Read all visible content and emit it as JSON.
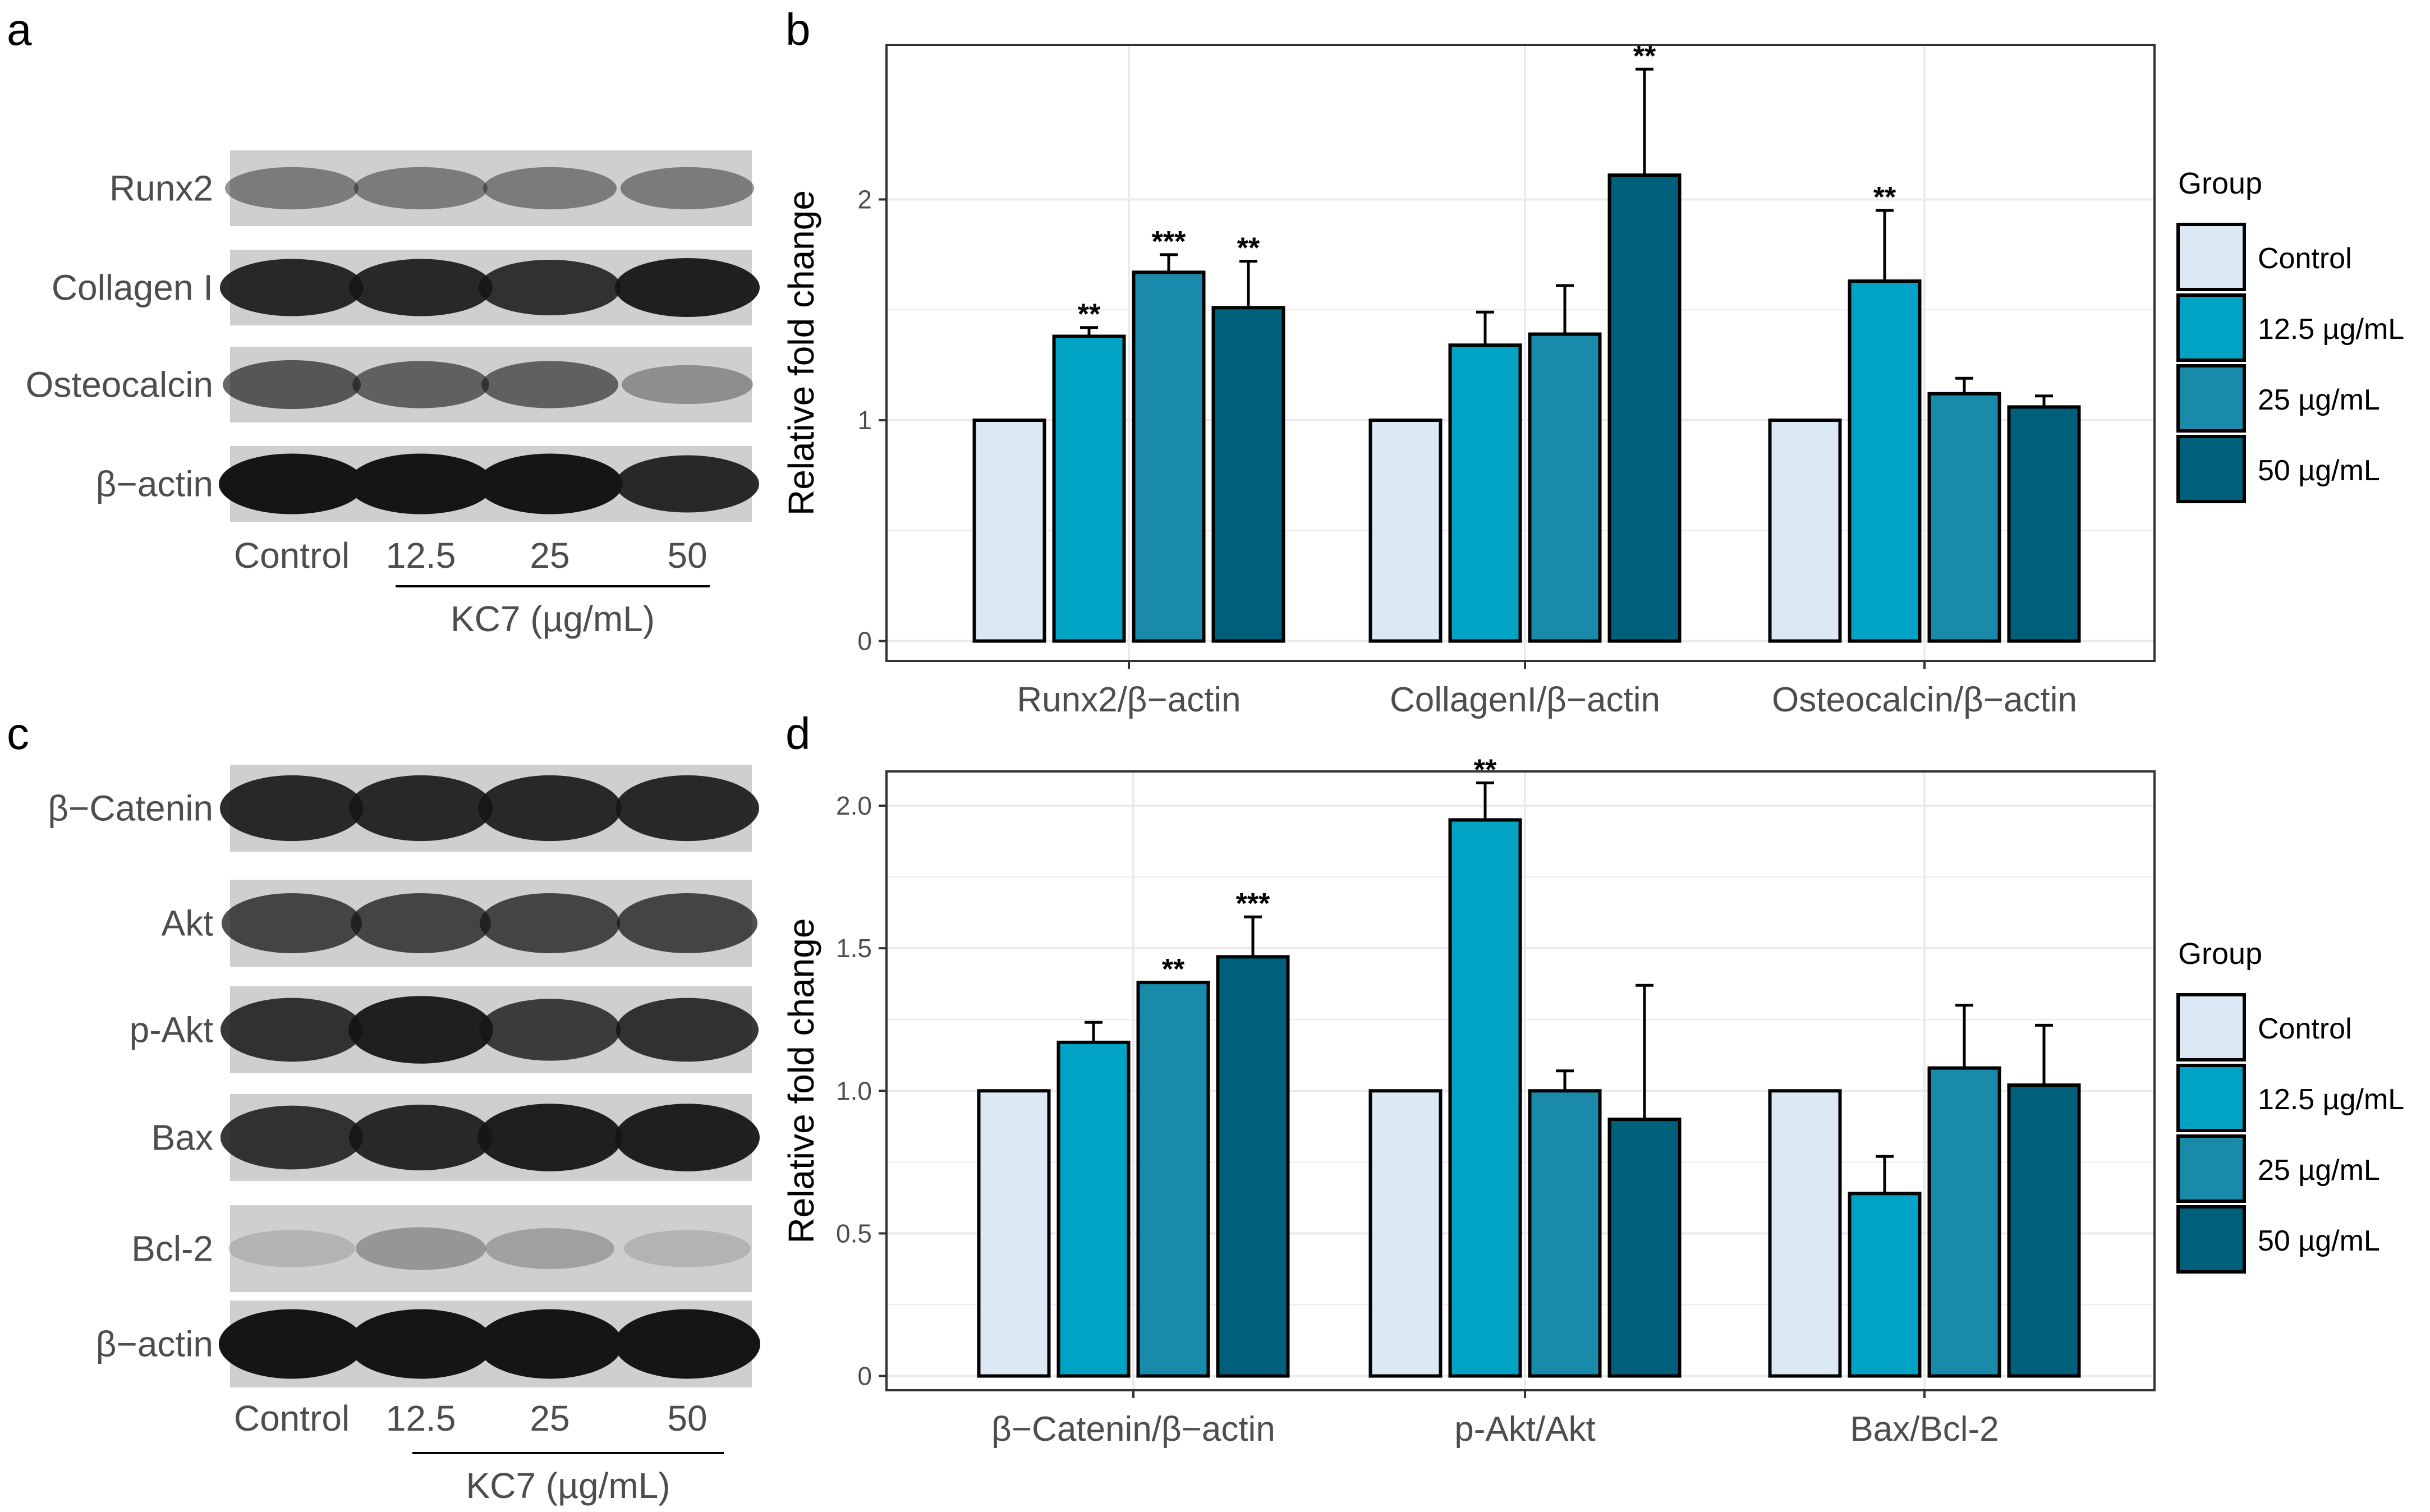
{
  "colors": {
    "Control": "#dce9f5",
    "12.5 µg/mL": "#00a3c4",
    "25 µg/mL": "#1a8aab",
    "50 µg/mL": "#005f7a",
    "grid": "#ebebeb",
    "blot_bg": "#cfcfcf",
    "band": "#151515"
  },
  "panel_letters": [
    "a",
    "b",
    "c",
    "d"
  ],
  "blot_a": {
    "rows": [
      "Runx2",
      "Collagen I",
      "Osteocalcin",
      "β−actin"
    ],
    "lanes": [
      "Control",
      "12.5",
      "25",
      "50"
    ],
    "group_label": "KC7 (µg/mL)",
    "band_intensity": [
      [
        0.45,
        0.45,
        0.45,
        0.45
      ],
      [
        0.9,
        0.9,
        0.85,
        0.95
      ],
      [
        0.65,
        0.6,
        0.6,
        0.35
      ],
      [
        1.0,
        1.0,
        1.0,
        0.9
      ]
    ]
  },
  "blot_c": {
    "rows": [
      "β−Catenin",
      "Akt",
      "p-Akt",
      "Bax",
      "Bcl-2",
      "β−actin"
    ],
    "lanes": [
      "Control",
      "12.5",
      "25",
      "50"
    ],
    "group_label": "KC7 (µg/mL)",
    "band_intensity": [
      [
        0.9,
        0.9,
        0.9,
        0.9
      ],
      [
        0.75,
        0.75,
        0.75,
        0.75
      ],
      [
        0.85,
        0.95,
        0.8,
        0.85
      ],
      [
        0.85,
        0.9,
        0.95,
        0.95
      ],
      [
        0.15,
        0.3,
        0.25,
        0.15
      ],
      [
        1.0,
        1.0,
        1.0,
        1.0
      ]
    ]
  },
  "chart_data": [
    {
      "type": "bar",
      "panel": "b",
      "categories": [
        "Runx2/β−actin",
        "CollagenI/β−actin",
        "Osteocalcin/β−actin"
      ],
      "series": [
        {
          "name": "Control",
          "values": [
            1.0,
            1.0,
            1.0
          ],
          "errors": [
            0,
            0,
            0
          ],
          "sig": [
            "",
            "",
            ""
          ]
        },
        {
          "name": "12.5 µg/mL",
          "values": [
            1.38,
            1.34,
            1.63
          ],
          "errors": [
            0.04,
            0.15,
            0.32
          ],
          "sig": [
            "**",
            "",
            "**"
          ]
        },
        {
          "name": "25 µg/mL",
          "values": [
            1.67,
            1.39,
            1.12
          ],
          "errors": [
            0.08,
            0.22,
            0.07
          ],
          "sig": [
            "***",
            "",
            ""
          ]
        },
        {
          "name": "50 µg/mL",
          "values": [
            1.51,
            2.11,
            1.06
          ],
          "errors": [
            0.21,
            0.48,
            0.05
          ],
          "sig": [
            "**",
            "**",
            ""
          ]
        }
      ],
      "ylabel": "Relative fold change",
      "ylim": [
        -0.09,
        2.7
      ],
      "yticks": [
        0,
        1,
        2
      ],
      "ytick_labels": [
        "0",
        "1",
        "2"
      ],
      "legend_title": "Group",
      "legend_position": "right",
      "grid": true
    },
    {
      "type": "bar",
      "panel": "d",
      "categories": [
        "β−Catenin/β−actin",
        "p-Akt/Akt",
        "Bax/Bcl-2"
      ],
      "series": [
        {
          "name": "Control",
          "values": [
            1.0,
            1.0,
            1.0
          ],
          "errors": [
            0,
            0,
            0
          ],
          "sig": [
            "",
            "",
            ""
          ]
        },
        {
          "name": "12.5 µg/mL",
          "values": [
            1.17,
            1.95,
            0.64
          ],
          "errors": [
            0.07,
            0.13,
            0.13
          ],
          "sig": [
            "",
            "**",
            ""
          ]
        },
        {
          "name": "25 µg/mL",
          "values": [
            1.38,
            1.0,
            1.08
          ],
          "errors": [
            0.0,
            0.07,
            0.22
          ],
          "sig": [
            "**",
            "",
            ""
          ]
        },
        {
          "name": "50 µg/mL",
          "values": [
            1.47,
            0.9,
            1.02
          ],
          "errors": [
            0.14,
            0.47,
            0.21
          ],
          "sig": [
            "***",
            "",
            ""
          ]
        }
      ],
      "ylabel": "Relative fold change",
      "ylim": [
        -0.05,
        2.12
      ],
      "yticks": [
        0,
        0.5,
        1.0,
        1.5,
        2.0
      ],
      "ytick_labels": [
        "0",
        "0.5",
        "1.0",
        "1.5",
        "2.0"
      ],
      "legend_title": "Group",
      "legend_position": "right",
      "grid": true
    }
  ]
}
